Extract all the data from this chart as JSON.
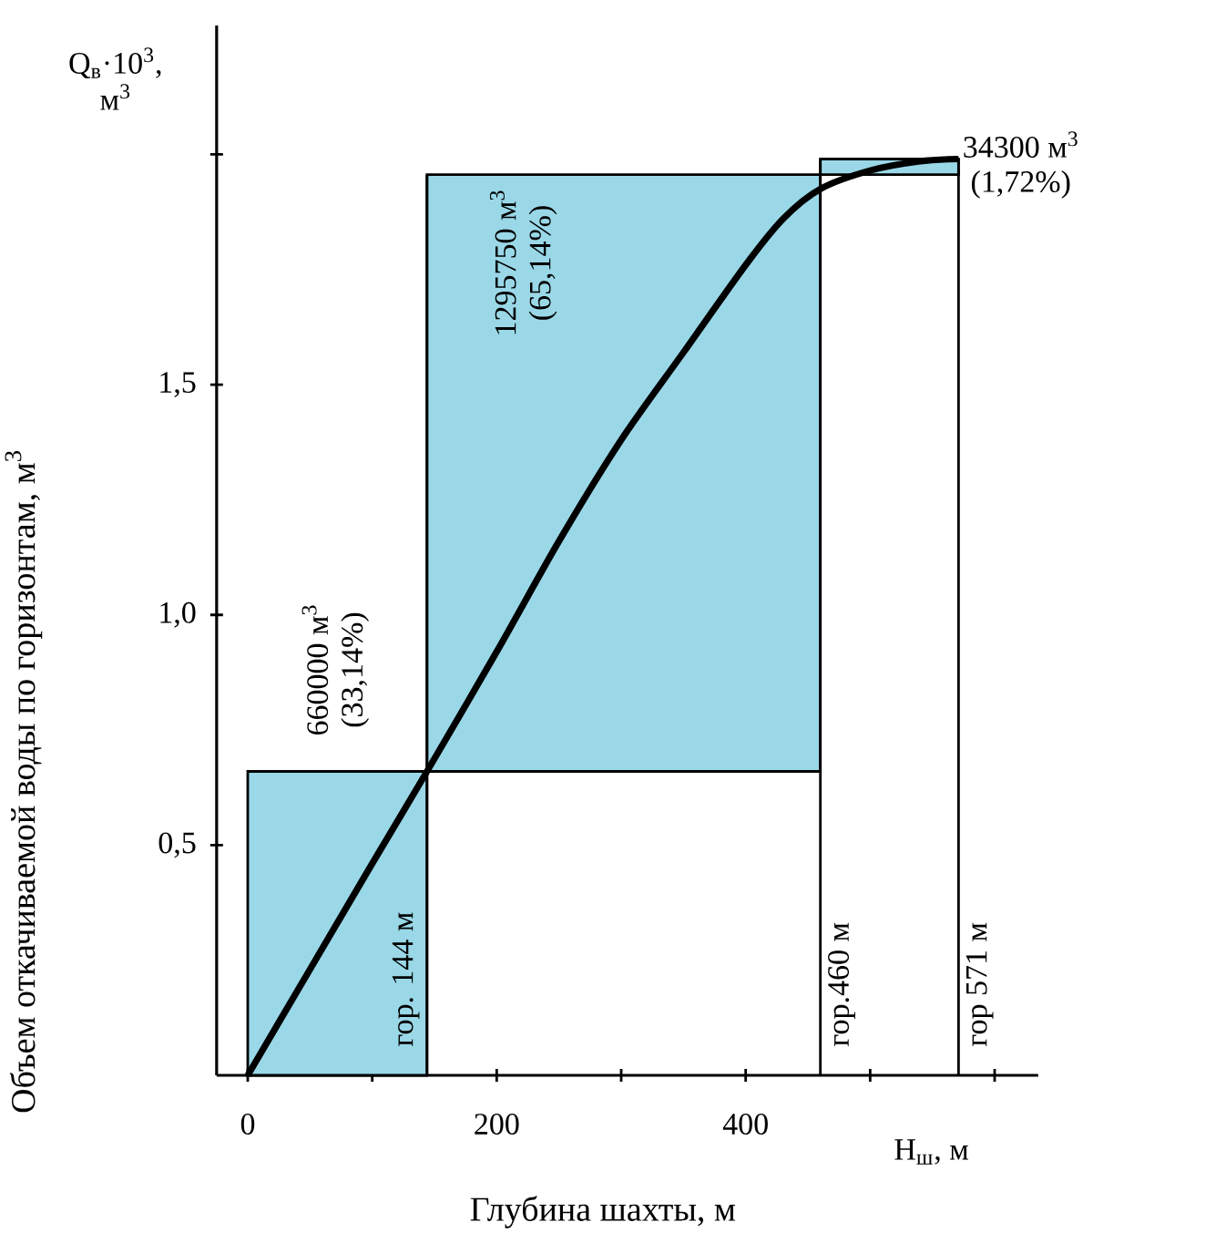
{
  "chart_data": {
    "type": "line",
    "xlabel": "Глубина шахты, м",
    "ylabel": "Объем откачиваемой воды по горизонтам, м$^{3}$",
    "xlim": [
      -25,
      635
    ],
    "ylim": [
      0,
      2.28
    ],
    "xticks": [
      {
        "value": 0,
        "label": "0"
      },
      {
        "value": 100,
        "label": null
      },
      {
        "value": 200,
        "label": "200"
      },
      {
        "value": 300,
        "label": null
      },
      {
        "value": 400,
        "label": "400"
      },
      {
        "value": 500,
        "label": null
      },
      {
        "value": 600,
        "label": null
      }
    ],
    "yticks": [
      {
        "value": 0.5,
        "label": "0,5"
      },
      {
        "value": 1,
        "label": "1,0"
      },
      {
        "value": 1.5,
        "label": "1,5"
      },
      {
        "value": 2,
        "label": null
      }
    ],
    "series": [
      {
        "type": "histogram",
        "bins": [
          0,
          144,
          460,
          571
        ],
        "base": [
          0,
          0.66,
          1.956
        ],
        "values": [
          0.66,
          1.296,
          0.034
        ],
        "color": "#9ad8e8"
      },
      {
        "color": "#000000",
        "x": [
          0,
          50,
          100,
          144,
          200,
          250,
          300,
          350,
          400,
          430,
          460,
          500,
          540,
          571
        ],
        "values": [
          0,
          0.23,
          0.46,
          0.66,
          0.92,
          1.16,
          1.38,
          1.57,
          1.76,
          1.86,
          1.925,
          1.965,
          1.985,
          1.99
        ]
      }
    ],
    "ref_lines": [
      {
        "axis": "x",
        "value": 144,
        "label": "гор. 144 м"
      },
      {
        "axis": "x",
        "value": 460,
        "label": "гор.460 м"
      },
      {
        "axis": "x",
        "value": 571,
        "label": "гор 571 м"
      }
    ],
    "annotations": [
      "660000 м$^{3}$",
      "(33,14%)",
      "1295750 м$^{3}$",
      "(65,14%)",
      "34300 м$^{3}$",
      "(1,72%)",
      "Н$_{ш}$, м",
      "Q$_{в}$·10$^{3}$, м$^{3}$"
    ]
  }
}
